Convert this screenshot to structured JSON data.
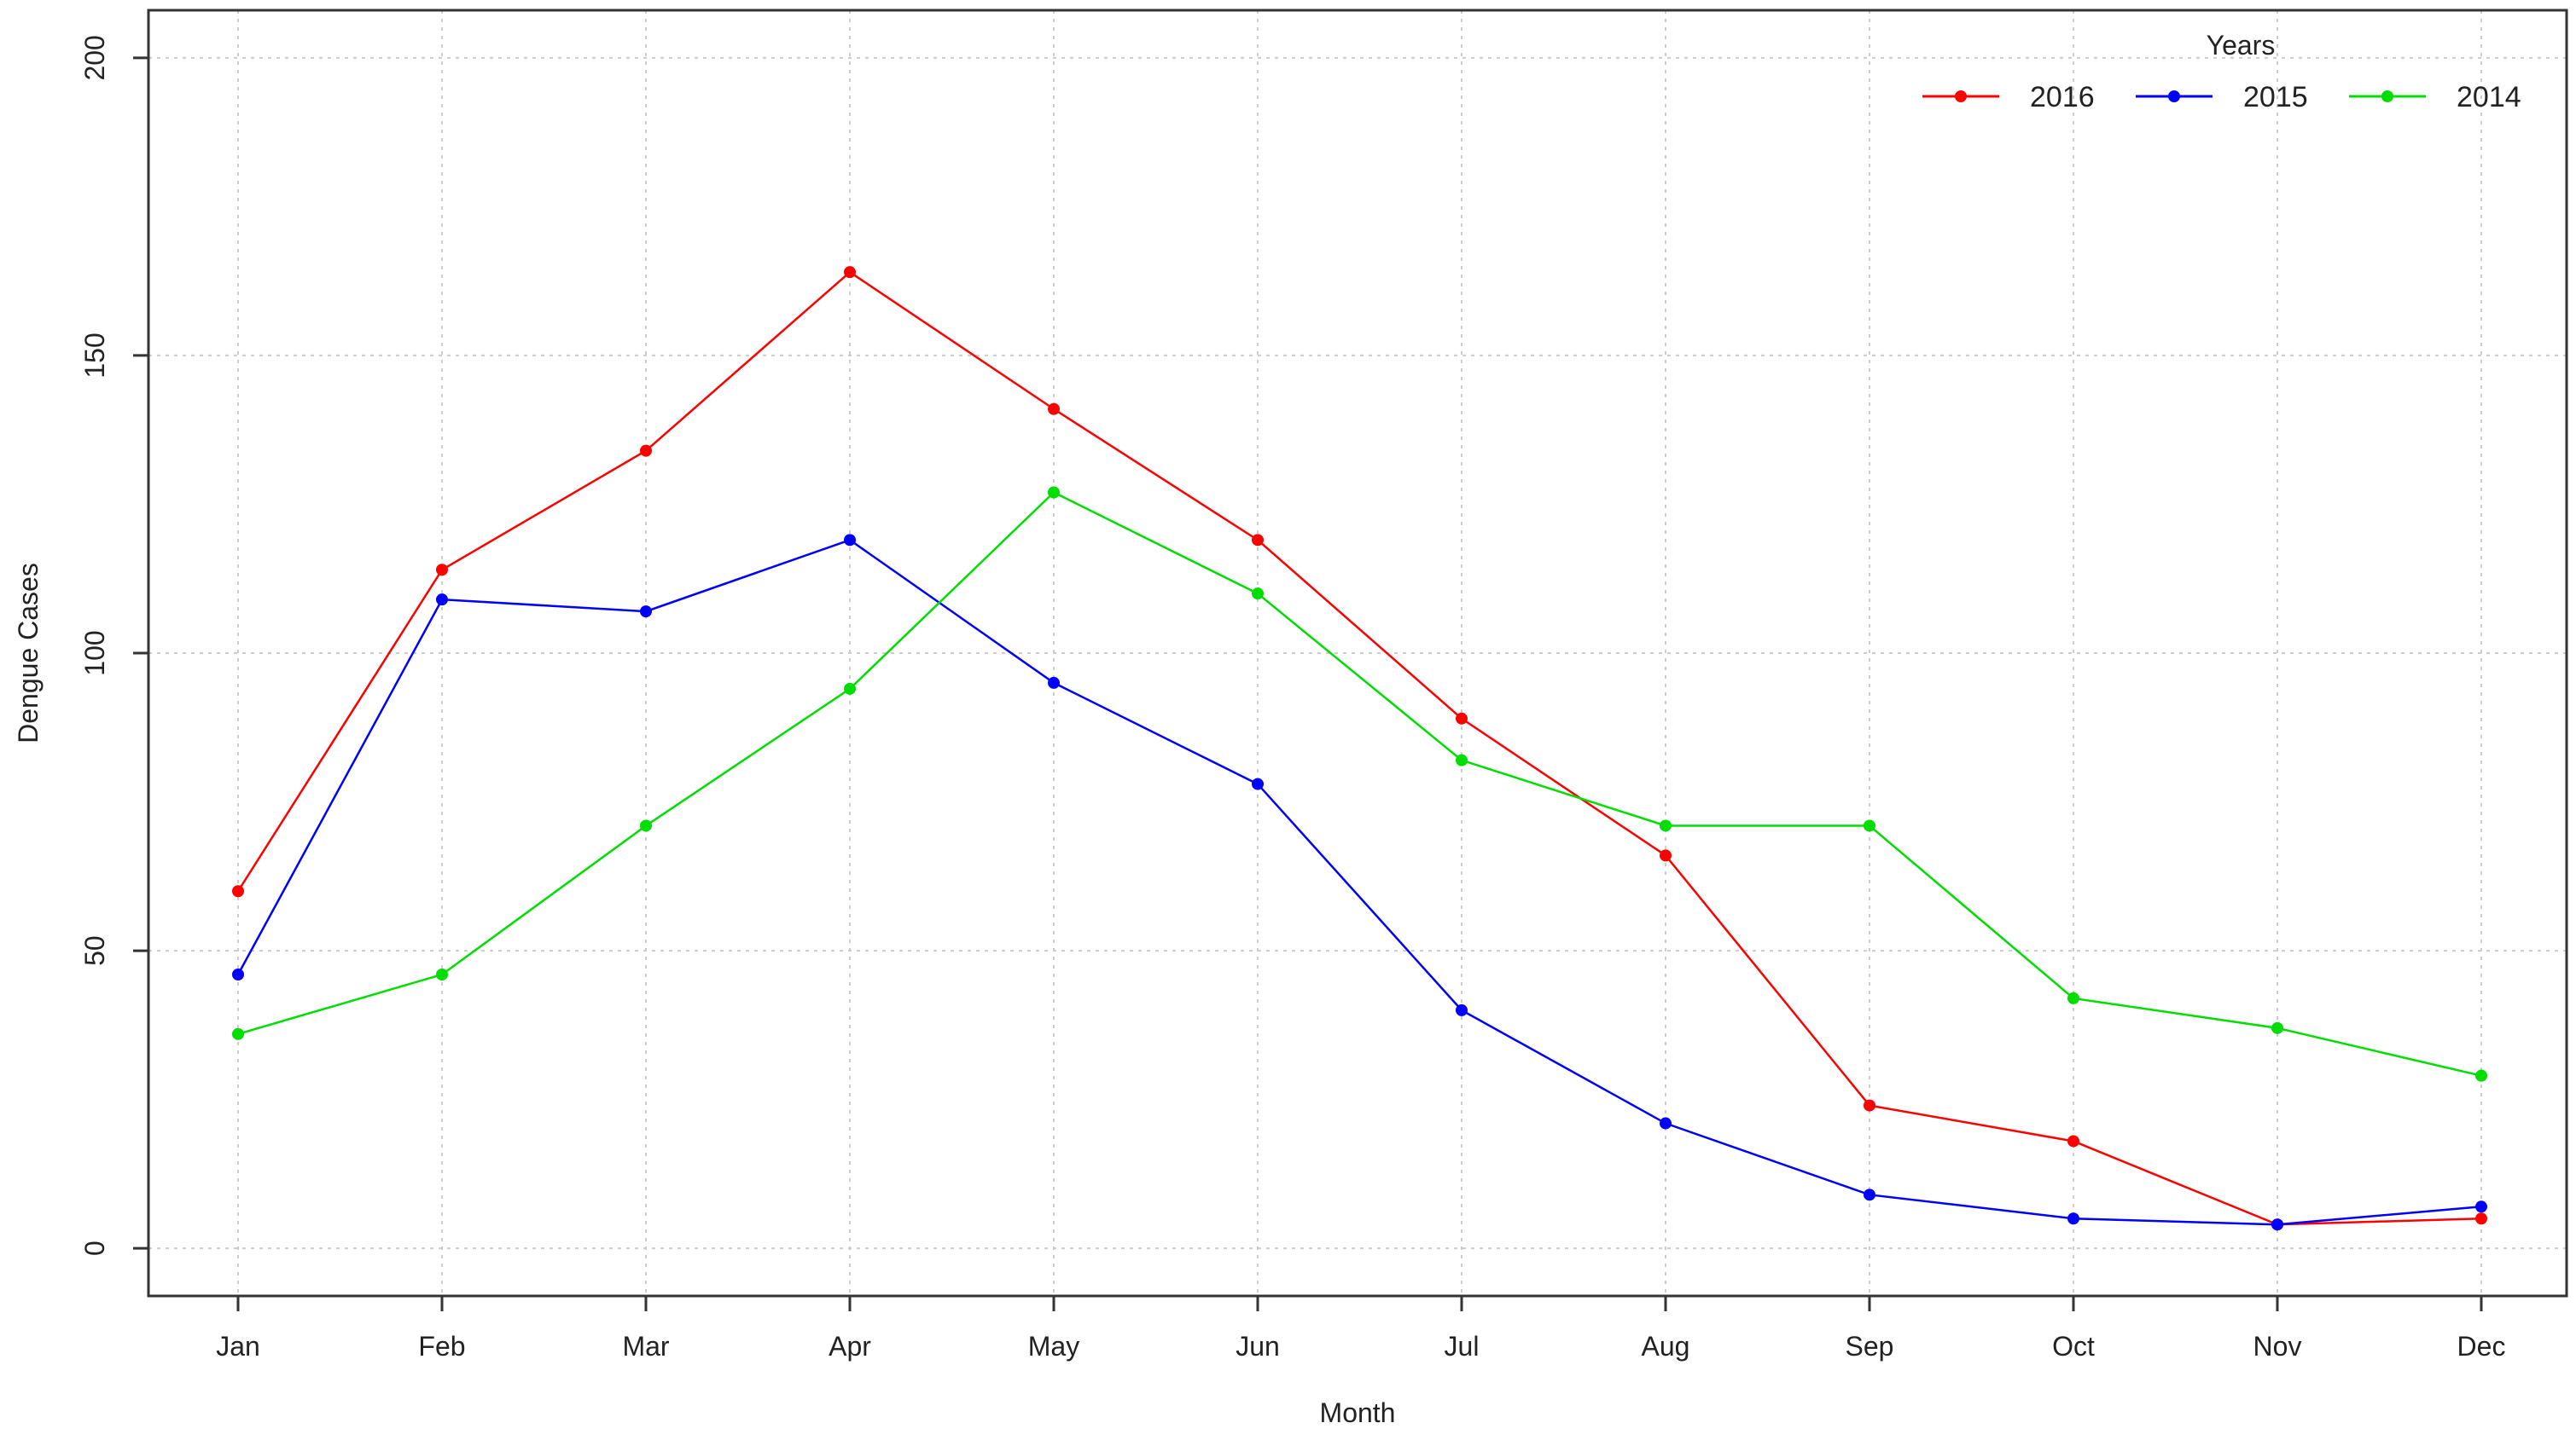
{
  "chart_data": {
    "type": "line",
    "title": "",
    "xlabel": "Month",
    "ylabel": "Dengue Cases",
    "categories": [
      "Jan",
      "Feb",
      "Mar",
      "Apr",
      "May",
      "Jun",
      "Jul",
      "Aug",
      "Sep",
      "Oct",
      "Nov",
      "Dec"
    ],
    "ylim": [
      -8,
      208
    ],
    "yticks": [
      0,
      50,
      100,
      150,
      200
    ],
    "grid": true,
    "legend": {
      "title": "Years",
      "position": "top-right"
    },
    "series": [
      {
        "name": "2016",
        "color": "#ff0000",
        "values": [
          60,
          114,
          134,
          164,
          141,
          119,
          89,
          66,
          24,
          18,
          4,
          5
        ]
      },
      {
        "name": "2015",
        "color": "#0000ff",
        "values": [
          46,
          109,
          107,
          119,
          95,
          78,
          40,
          21,
          9,
          5,
          4,
          7
        ]
      },
      {
        "name": "2014",
        "color": "#00dd00",
        "values": [
          36,
          46,
          71,
          94,
          127,
          110,
          82,
          71,
          71,
          42,
          37,
          29
        ]
      }
    ]
  }
}
